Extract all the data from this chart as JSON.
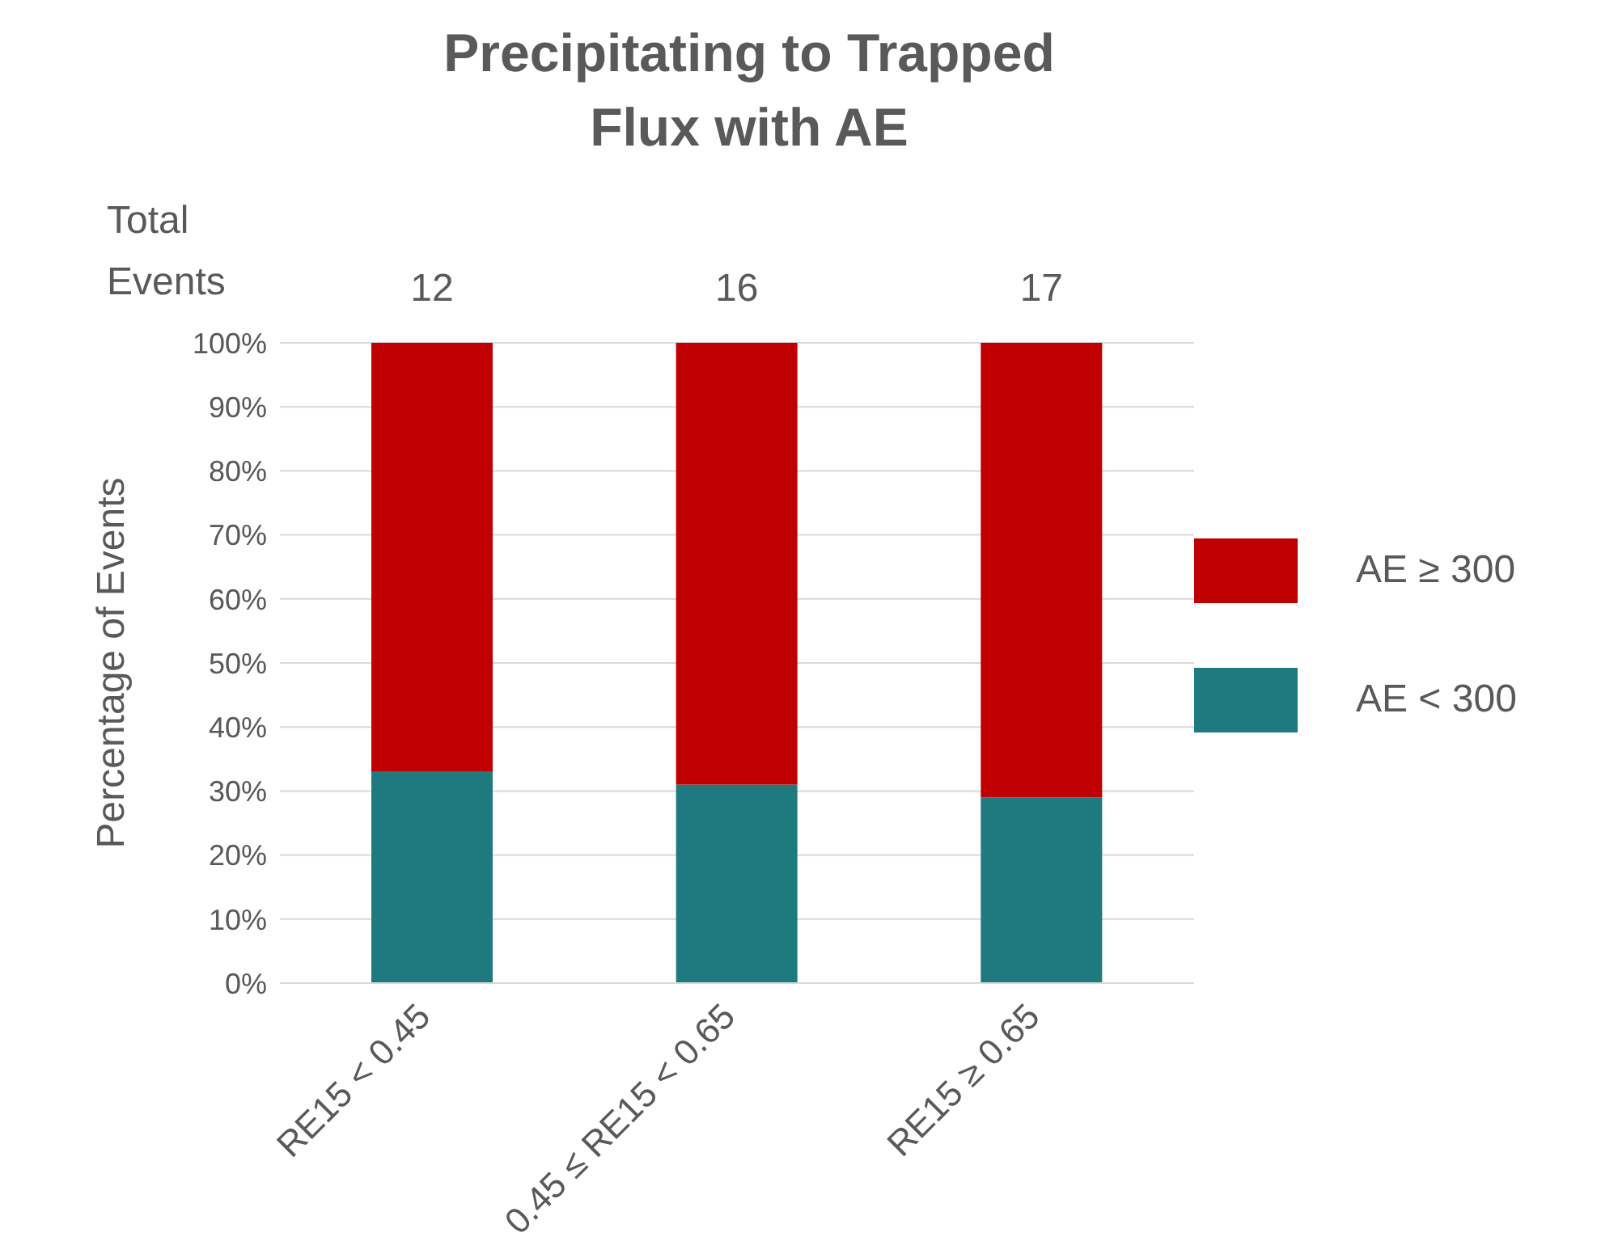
{
  "chart_data": {
    "type": "bar",
    "title": "Precipitating to Trapped Flux with AE",
    "ylabel": "Percentage of Events",
    "categories": [
      "RE15 < 0.45",
      "0.45 ≤ RE15 < 0.65",
      "RE15 ≥ 0.65"
    ],
    "series": [
      {
        "name": "AE < 300",
        "color": "#1f7a80",
        "values": [
          33,
          31,
          29
        ]
      },
      {
        "name": "AE ≥ 300",
        "color": "#c00000",
        "values": [
          67,
          69,
          71
        ]
      }
    ],
    "stacked": true,
    "ylim": [
      0,
      100
    ],
    "yticks": [
      {
        "value": 0,
        "label": "0%"
      },
      {
        "value": 10,
        "label": "10%"
      },
      {
        "value": 20,
        "label": "20%"
      },
      {
        "value": 30,
        "label": "30%"
      },
      {
        "value": 40,
        "label": "40%"
      },
      {
        "value": 50,
        "label": "50%"
      },
      {
        "value": 60,
        "label": "60%"
      },
      {
        "value": 70,
        "label": "70%"
      },
      {
        "value": 80,
        "label": "80%"
      },
      {
        "value": 90,
        "label": "90%"
      },
      {
        "value": 100,
        "label": "100%"
      }
    ],
    "grid": "y",
    "legend": "right",
    "annotations": [
      "Total Events",
      "12",
      "16",
      "17"
    ]
  }
}
